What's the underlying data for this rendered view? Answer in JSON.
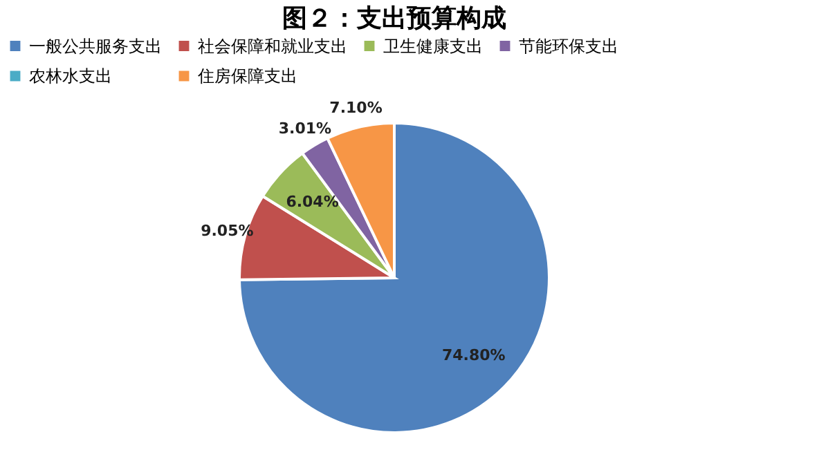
{
  "chart_data": {
    "type": "pie",
    "title": "图２：支出预算构成",
    "categories": [
      "一般公共服务支出",
      "社会保障和就业支出",
      "卫生健康支出",
      "节能环保支出",
      "农林水支出",
      "住房保障支出"
    ],
    "values": [
      74.8,
      9.05,
      6.04,
      3.01,
      0,
      7.1
    ],
    "colors": [
      "#4f81bd",
      "#c0504d",
      "#9bbb59",
      "#8064a2",
      "#4bacc6",
      "#f79646"
    ],
    "value_labels": [
      "74.80%",
      "9.05%",
      "6.04%",
      "3.01%",
      null,
      "7.10%"
    ],
    "legend": "top"
  }
}
